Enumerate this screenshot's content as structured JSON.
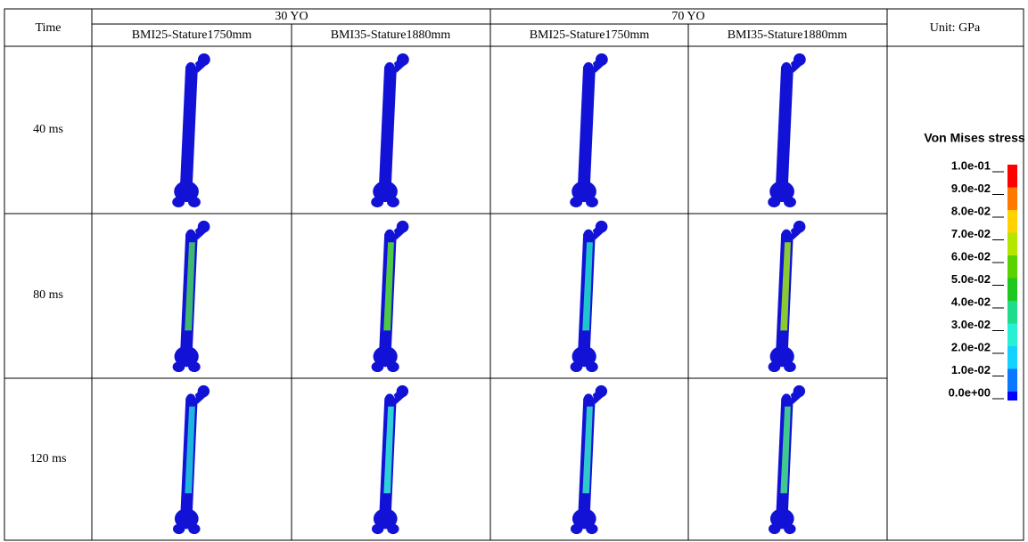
{
  "header": {
    "time": "Time",
    "groups": [
      "30 YO",
      "70 YO"
    ],
    "subgroups": [
      "BMI25-Stature1750mm",
      "BMI35-Stature1880mm",
      "BMI25-Stature1750mm",
      "BMI35-Stature1880mm"
    ],
    "unit": "Unit: GPa"
  },
  "rows": [
    "40 ms",
    "80 ms",
    "120 ms"
  ],
  "legend": {
    "title": "Von Mises stress",
    "labels": [
      "1.0e-01",
      "9.0e-02",
      "8.0e-02",
      "7.0e-02",
      "6.0e-02",
      "5.0e-02",
      "4.0e-02",
      "3.0e-02",
      "2.0e-02",
      "1.0e-02",
      "0.0e+00"
    ]
  }
}
